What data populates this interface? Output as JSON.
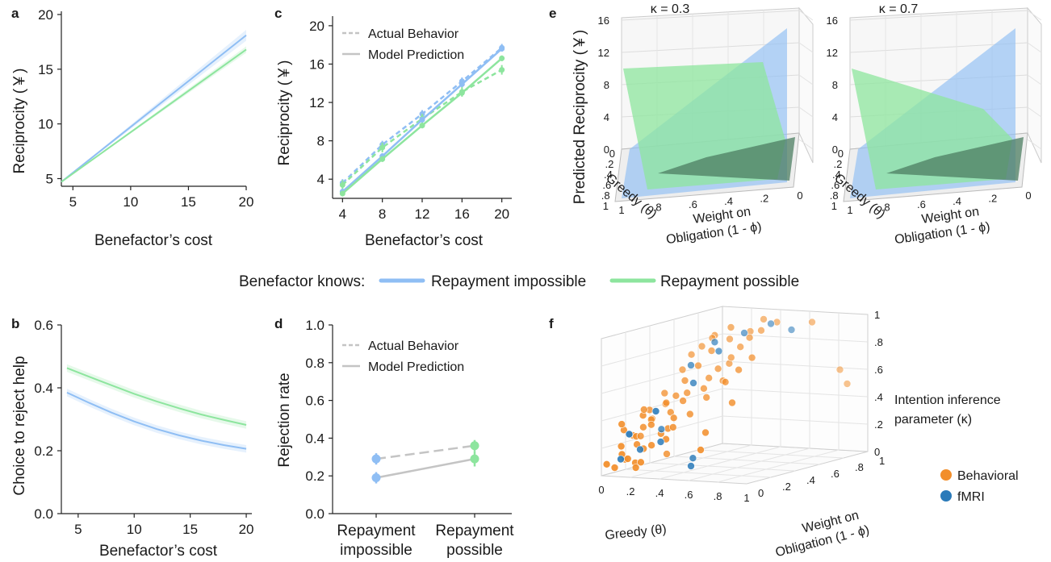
{
  "figure": {
    "legend_title": "Benefactor knows:",
    "legend_items": [
      {
        "label": "Repayment impossible",
        "color": "#8fbef4"
      },
      {
        "label": "Repayment possible",
        "color": "#8de59e"
      }
    ],
    "colors": {
      "impossible": "#8fbef4",
      "possible": "#8de59e",
      "prediction_gray": "#c4c4c4",
      "behavioral": "#f28e2b",
      "fmri": "#2a7ab9"
    }
  },
  "chart_data": [
    {
      "panel": "a",
      "type": "line",
      "xlabel": "Benefactor’s cost",
      "ylabel": "Reciprocity (￥)",
      "xlim": [
        4,
        20
      ],
      "ylim": [
        4.3,
        20
      ],
      "xticks": [
        "5",
        "10",
        "15",
        "20"
      ],
      "yticks": [
        "5",
        "10",
        "15",
        "20"
      ],
      "series": [
        {
          "key": "impossible",
          "x": [
            4,
            20
          ],
          "y": [
            4.7,
            18.1
          ],
          "band": 0.5
        },
        {
          "key": "possible",
          "x": [
            4,
            20
          ],
          "y": [
            4.7,
            16.8
          ],
          "band": 0.3
        }
      ]
    },
    {
      "panel": "b",
      "type": "line",
      "xlabel": "Benefactor’s cost",
      "ylabel": "Choice to reject help",
      "xlim": [
        3.5,
        20.5
      ],
      "ylim": [
        0,
        0.6
      ],
      "xticks": [
        "5",
        "10",
        "15",
        "20"
      ],
      "yticks": [
        "0.0",
        "0.2",
        "0.4",
        "0.6"
      ],
      "series": [
        {
          "key": "possible",
          "x": [
            4,
            6,
            8,
            10,
            12,
            14,
            16,
            18,
            20
          ],
          "y": [
            0.463,
            0.435,
            0.408,
            0.381,
            0.357,
            0.335,
            0.315,
            0.298,
            0.282
          ],
          "band": 0.012
        },
        {
          "key": "impossible",
          "x": [
            4,
            6,
            8,
            10,
            12,
            14,
            16,
            18,
            20
          ],
          "y": [
            0.385,
            0.352,
            0.321,
            0.293,
            0.269,
            0.249,
            0.232,
            0.218,
            0.206
          ],
          "band": 0.012
        }
      ]
    },
    {
      "panel": "c",
      "type": "line",
      "xlabel": "Benefactor’s cost",
      "ylabel": "Reciprocity (￥)",
      "xlim": [
        3,
        21
      ],
      "ylim": [
        2,
        21
      ],
      "xticks": [
        "4",
        "8",
        "12",
        "16",
        "20"
      ],
      "yticks": [
        "4",
        "8",
        "12",
        "16",
        "20"
      ],
      "legend": [
        "Actual Behavior",
        "Model Prediction"
      ],
      "series": [
        {
          "key": "impossible",
          "kind": "actual",
          "x": [
            4,
            8,
            12,
            16,
            20
          ],
          "y": [
            3.6,
            7.6,
            10.8,
            14.2,
            17.7
          ],
          "err": 0.4
        },
        {
          "key": "possible",
          "kind": "actual",
          "x": [
            4,
            8,
            12,
            16,
            20
          ],
          "y": [
            3.4,
            7.3,
            10.3,
            13.1,
            15.4
          ],
          "err": 0.5
        },
        {
          "key": "impossible",
          "kind": "prediction",
          "x": [
            4,
            8,
            12,
            16,
            20
          ],
          "y": [
            2.7,
            6.4,
            10.2,
            13.9,
            17.6
          ],
          "err": 0.3
        },
        {
          "key": "possible",
          "kind": "prediction",
          "x": [
            4,
            8,
            12,
            16,
            20
          ],
          "y": [
            2.5,
            6.1,
            9.6,
            13.0,
            16.6
          ],
          "err": 0.3
        }
      ]
    },
    {
      "panel": "d",
      "type": "line",
      "ylabel": "Rejection rate",
      "categories": [
        "Repayment\nimpossible",
        "Repayment\npossible"
      ],
      "category_lines": [
        [
          "Repayment",
          "impossible"
        ],
        [
          "Repayment",
          "possible"
        ]
      ],
      "ylim": [
        0,
        1
      ],
      "yticks": [
        "0.0",
        "0.2",
        "0.4",
        "0.6",
        "0.8",
        "1.0"
      ],
      "legend": [
        "Actual Behavior",
        "Model Prediction"
      ],
      "series": [
        {
          "name": "Actual Behavior",
          "values": [
            0.29,
            0.36
          ],
          "err": [
            0.03,
            0.03
          ]
        },
        {
          "name": "Model Prediction",
          "values": [
            0.19,
            0.29
          ],
          "err": [
            0.03,
            0.04
          ]
        }
      ]
    },
    {
      "panel": "e",
      "type": "surface3d",
      "zlabel": "Predicted Reciprocity (￥)",
      "xlabel": "Greedy (θ)",
      "ylabel_lines": [
        "Weight on",
        "Obligation (1 - ϕ)"
      ],
      "zticks": [
        "0",
        "4",
        "8",
        "12",
        "16"
      ],
      "theta_ticks": [
        "0",
        ".2",
        ".4",
        ".6",
        ".8",
        "1"
      ],
      "weight_ticks": [
        "1",
        ".8",
        ".6",
        ".4",
        ".2",
        "0"
      ],
      "subplots": [
        {
          "title": "κ = 0.3",
          "impossible_peak": 16,
          "possible_peak": 12
        },
        {
          "title": "κ = 0.7",
          "impossible_peak": 16,
          "possible_peak": 12
        }
      ]
    },
    {
      "panel": "f",
      "type": "scatter3d",
      "xlabel": "Greedy (θ)",
      "ylabel_lines": [
        "Weight on",
        "Obligation (1 - ϕ)"
      ],
      "zlabel_lines": [
        "Intention inference",
        "parameter (κ)"
      ],
      "x_ticks": [
        "0",
        ".2",
        ".4",
        ".6",
        ".8",
        "1"
      ],
      "y_ticks": [
        "0",
        ".2",
        ".4",
        ".6",
        ".8",
        "1"
      ],
      "z_ticks": [
        "0",
        ".2",
        ".4",
        ".6",
        ".8",
        "1"
      ],
      "legend": [
        {
          "label": "Behavioral",
          "key": "behavioral"
        },
        {
          "label": "fMRI",
          "key": "fmri"
        }
      ],
      "points_behavioral": [
        [
          0.05,
          0.05,
          0.05
        ],
        [
          0.08,
          0.1,
          0.1
        ],
        [
          0.1,
          0.05,
          0.15
        ],
        [
          0.12,
          0.15,
          0.2
        ],
        [
          0.15,
          0.1,
          0.08
        ],
        [
          0.05,
          0.2,
          0.25
        ],
        [
          0.08,
          0.25,
          0.3
        ],
        [
          0.1,
          0.3,
          0.35
        ],
        [
          0.12,
          0.2,
          0.4
        ],
        [
          0.15,
          0.35,
          0.45
        ],
        [
          0.2,
          0.3,
          0.1
        ],
        [
          0.22,
          0.15,
          0.2
        ],
        [
          0.25,
          0.25,
          0.3
        ],
        [
          0.18,
          0.4,
          0.5
        ],
        [
          0.2,
          0.45,
          0.6
        ],
        [
          0.25,
          0.5,
          0.7
        ],
        [
          0.3,
          0.55,
          0.8
        ],
        [
          0.28,
          0.6,
          0.9
        ],
        [
          0.35,
          0.65,
          0.95
        ],
        [
          0.3,
          0.7,
          0.85
        ],
        [
          0.4,
          0.75,
          0.9
        ],
        [
          0.45,
          0.8,
          0.98
        ],
        [
          0.5,
          0.85,
          0.95
        ],
        [
          0.38,
          0.6,
          0.7
        ],
        [
          0.42,
          0.5,
          0.6
        ],
        [
          0.33,
          0.45,
          0.55
        ],
        [
          0.1,
          0.55,
          0.65
        ],
        [
          0.06,
          0.45,
          0.5
        ],
        [
          0.04,
          0.35,
          0.4
        ],
        [
          0.03,
          0.15,
          0.3
        ],
        [
          0.07,
          0.08,
          0.2
        ],
        [
          0.09,
          0.18,
          0.25
        ],
        [
          0.11,
          0.28,
          0.35
        ],
        [
          0.13,
          0.38,
          0.45
        ],
        [
          0.16,
          0.22,
          0.33
        ],
        [
          0.19,
          0.12,
          0.18
        ],
        [
          0.21,
          0.32,
          0.4
        ],
        [
          0.24,
          0.42,
          0.52
        ],
        [
          0.27,
          0.35,
          0.48
        ],
        [
          0.29,
          0.25,
          0.38
        ],
        [
          0.32,
          0.15,
          0.25
        ],
        [
          0.36,
          0.3,
          0.4
        ],
        [
          0.39,
          0.4,
          0.5
        ],
        [
          0.55,
          0.2,
          0.3
        ],
        [
          0.6,
          0.1,
          0.2
        ],
        [
          0.85,
          0.95,
          0.6
        ],
        [
          0.9,
          0.95,
          0.5
        ],
        [
          0.7,
          0.9,
          0.95
        ],
        [
          0.02,
          0.02,
          0.08
        ],
        [
          0.14,
          0.05,
          0.12
        ],
        [
          0.17,
          0.08,
          0.05
        ],
        [
          0.23,
          0.05,
          0.1
        ],
        [
          0.26,
          0.18,
          0.28
        ],
        [
          0.31,
          0.22,
          0.32
        ],
        [
          0.34,
          0.48,
          0.62
        ],
        [
          0.37,
          0.52,
          0.68
        ],
        [
          0.41,
          0.58,
          0.75
        ],
        [
          0.44,
          0.62,
          0.82
        ],
        [
          0.47,
          0.66,
          0.88
        ],
        [
          0.5,
          0.72,
          0.92
        ],
        [
          0.12,
          0.6,
          0.75
        ],
        [
          0.15,
          0.65,
          0.8
        ],
        [
          0.18,
          0.7,
          0.85
        ],
        [
          0.52,
          0.4,
          0.62
        ],
        [
          0.57,
          0.45,
          0.7
        ],
        [
          0.62,
          0.5,
          0.78
        ],
        [
          0.65,
          0.3,
          0.5
        ],
        [
          0.02,
          0.3,
          0.22
        ],
        [
          0.04,
          0.12,
          0.35
        ],
        [
          0.06,
          0.28,
          0.42
        ]
      ],
      "points_fmri": [
        [
          0.05,
          0.1,
          0.1
        ],
        [
          0.1,
          0.2,
          0.15
        ],
        [
          0.15,
          0.05,
          0.3
        ],
        [
          0.2,
          0.25,
          0.2
        ],
        [
          0.25,
          0.15,
          0.45
        ],
        [
          0.3,
          0.4,
          0.6
        ],
        [
          0.35,
          0.55,
          0.8
        ],
        [
          0.4,
          0.7,
          0.9
        ],
        [
          0.5,
          0.8,
          0.95
        ],
        [
          0.2,
          0.5,
          0.7
        ],
        [
          0.45,
          0.2,
          0.05
        ],
        [
          0.38,
          0.3,
          0.08
        ],
        [
          0.08,
          0.4,
          0.25
        ],
        [
          0.6,
          0.85,
          0.9
        ],
        [
          0.28,
          0.6,
          0.85
        ]
      ]
    }
  ]
}
